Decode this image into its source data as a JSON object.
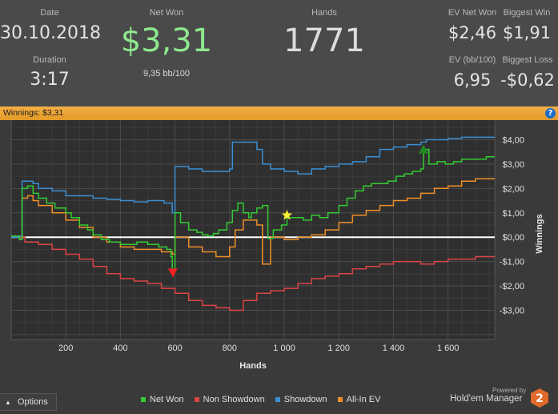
{
  "stats": {
    "date_label": "Date",
    "date_value": "30.10.2018",
    "duration_label": "Duration",
    "duration_value": "3:17",
    "net_won_label": "Net Won",
    "net_won_value": "$3,31",
    "net_won_sub": "9,35 bb/100",
    "hands_label": "Hands",
    "hands_value": "1771",
    "ev_net_won_label": "EV Net Won",
    "ev_net_won_value": "$2,46",
    "biggest_win_label": "Biggest Win",
    "biggest_win_value": "$1,91",
    "ev_bb_label": "EV (bb/100)",
    "ev_bb_value": "6,95",
    "biggest_loss_label": "Biggest Loss",
    "biggest_loss_value": "-$0,62"
  },
  "winnings_bar": {
    "text": "Winnings: $3,31",
    "help_icon": "help-icon"
  },
  "options": {
    "label": "Options",
    "icon": "chevron-up-icon"
  },
  "brand": {
    "powered": "Powered by",
    "name": "Hold'em Manager",
    "logo_text": "2"
  },
  "colors": {
    "net_won": "#33cc33",
    "non_showdown": "#dd4444",
    "showdown": "#3b8fd4",
    "all_in_ev": "#f0902a",
    "net_won_value": "#8ee88e",
    "zero_line": "#ffffff"
  },
  "chart_data": {
    "type": "line",
    "xlabel": "Hands",
    "ylabel": "Winnings",
    "xlim": [
      0,
      1771
    ],
    "ylim": [
      -4.2,
      5.1
    ],
    "x_ticks": [
      200,
      400,
      600,
      800,
      1000,
      1200,
      1400,
      1600
    ],
    "x_tick_labels": [
      "200",
      "400",
      "600",
      "800",
      "1 000",
      "1 200",
      "1 400",
      "1 600"
    ],
    "y_ticks": [
      4,
      3,
      2,
      1,
      0,
      -1,
      -2,
      -3
    ],
    "y_tick_labels": [
      "$4,00",
      "$3,00",
      "$2,00",
      "$1,00",
      "$0,00",
      "-$1,00",
      "-$2,00",
      "-$3,00"
    ],
    "grid": true,
    "legend_position": "bottom",
    "markers": [
      {
        "type": "star",
        "x": 1010,
        "y": 0.9
      },
      {
        "type": "triangle-up",
        "x": 1510,
        "y": 3.6
      },
      {
        "type": "triangle-down",
        "x": 592,
        "y": -1.45
      }
    ],
    "series": [
      {
        "name": "Net Won",
        "color": "#33cc33",
        "x": [
          0,
          30,
          40,
          60,
          80,
          100,
          130,
          160,
          200,
          220,
          250,
          280,
          300,
          330,
          360,
          400,
          430,
          460,
          500,
          540,
          570,
          585,
          590,
          600,
          620,
          650,
          680,
          700,
          720,
          740,
          760,
          790,
          810,
          830,
          850,
          870,
          880,
          900,
          920,
          940,
          960,
          990,
          1010,
          1040,
          1070,
          1100,
          1130,
          1160,
          1200,
          1230,
          1260,
          1290,
          1320,
          1350,
          1380,
          1410,
          1440,
          1470,
          1500,
          1510,
          1530,
          1560,
          1590,
          1620,
          1650,
          1680,
          1710,
          1740,
          1771
        ],
        "y": [
          0.05,
          -0.1,
          2.0,
          2.1,
          1.8,
          1.6,
          1.4,
          1.2,
          1.0,
          0.8,
          0.5,
          0.3,
          0.1,
          -0.1,
          -0.2,
          -0.3,
          -0.3,
          -0.2,
          -0.3,
          -0.4,
          -0.5,
          -0.8,
          -1.4,
          1.0,
          0.6,
          0.3,
          0.2,
          0.1,
          0.05,
          0.15,
          0.3,
          0.6,
          1.1,
          1.4,
          1.0,
          0.8,
          1.0,
          1.2,
          1.3,
          -0.05,
          0.3,
          0.5,
          0.8,
          0.8,
          0.7,
          0.9,
          0.8,
          1.0,
          1.3,
          1.6,
          1.9,
          2.1,
          2.2,
          2.2,
          2.3,
          2.5,
          2.6,
          2.7,
          2.8,
          3.6,
          3.0,
          3.1,
          3.0,
          3.1,
          3.2,
          3.2,
          3.2,
          3.3,
          3.3
        ]
      },
      {
        "name": "Non Showdown",
        "color": "#dd4444",
        "x": [
          0,
          50,
          100,
          150,
          200,
          250,
          300,
          350,
          400,
          450,
          500,
          550,
          600,
          650,
          700,
          750,
          800,
          850,
          900,
          950,
          1000,
          1050,
          1100,
          1150,
          1200,
          1250,
          1300,
          1350,
          1400,
          1450,
          1500,
          1550,
          1600,
          1650,
          1700,
          1771
        ],
        "y": [
          0,
          -0.2,
          -0.3,
          -0.5,
          -0.7,
          -0.9,
          -1.2,
          -1.5,
          -1.7,
          -1.8,
          -1.9,
          -2.1,
          -2.3,
          -2.6,
          -2.8,
          -2.9,
          -3.0,
          -2.6,
          -2.3,
          -2.2,
          -2.1,
          -1.9,
          -1.7,
          -1.6,
          -1.5,
          -1.3,
          -1.2,
          -1.1,
          -1.0,
          -1.0,
          -1.1,
          -1.0,
          -0.9,
          -0.9,
          -0.8,
          -0.8
        ]
      },
      {
        "name": "Showdown",
        "color": "#3b8fd4",
        "x": [
          0,
          30,
          40,
          80,
          100,
          150,
          200,
          300,
          350,
          400,
          450,
          500,
          560,
          590,
          600,
          650,
          700,
          800,
          810,
          900,
          920,
          950,
          1000,
          1050,
          1100,
          1150,
          1200,
          1250,
          1300,
          1350,
          1400,
          1450,
          1500,
          1520,
          1600,
          1650,
          1700,
          1771
        ],
        "y": [
          0,
          0.05,
          2.3,
          2.2,
          2.0,
          1.9,
          1.7,
          1.6,
          1.55,
          1.5,
          1.45,
          1.5,
          1.4,
          1.0,
          2.9,
          2.8,
          2.7,
          2.8,
          3.9,
          3.6,
          3.0,
          2.8,
          2.7,
          2.6,
          2.8,
          2.9,
          3.0,
          3.1,
          3.3,
          3.6,
          3.7,
          3.8,
          3.9,
          4.0,
          4.05,
          4.1,
          4.1,
          4.1
        ]
      },
      {
        "name": "All-In EV",
        "color": "#f0902a",
        "x": [
          0,
          30,
          40,
          60,
          80,
          100,
          150,
          200,
          250,
          300,
          350,
          400,
          450,
          500,
          550,
          590,
          600,
          650,
          700,
          750,
          800,
          820,
          850,
          900,
          920,
          950,
          1000,
          1050,
          1100,
          1150,
          1200,
          1250,
          1300,
          1350,
          1400,
          1450,
          1500,
          1550,
          1600,
          1650,
          1700,
          1771
        ],
        "y": [
          0.05,
          -0.1,
          1.6,
          1.7,
          1.5,
          1.3,
          1.0,
          0.7,
          0.4,
          0.0,
          -0.2,
          -0.4,
          -0.5,
          -0.5,
          -0.6,
          -0.7,
          0.0,
          -0.4,
          -0.6,
          -0.8,
          -0.4,
          0.3,
          0.7,
          0.5,
          -1.1,
          0.0,
          -0.1,
          0.0,
          0.1,
          0.3,
          0.6,
          0.9,
          1.1,
          1.3,
          1.5,
          1.6,
          1.8,
          2.0,
          2.1,
          2.3,
          2.4,
          2.4
        ]
      }
    ]
  }
}
